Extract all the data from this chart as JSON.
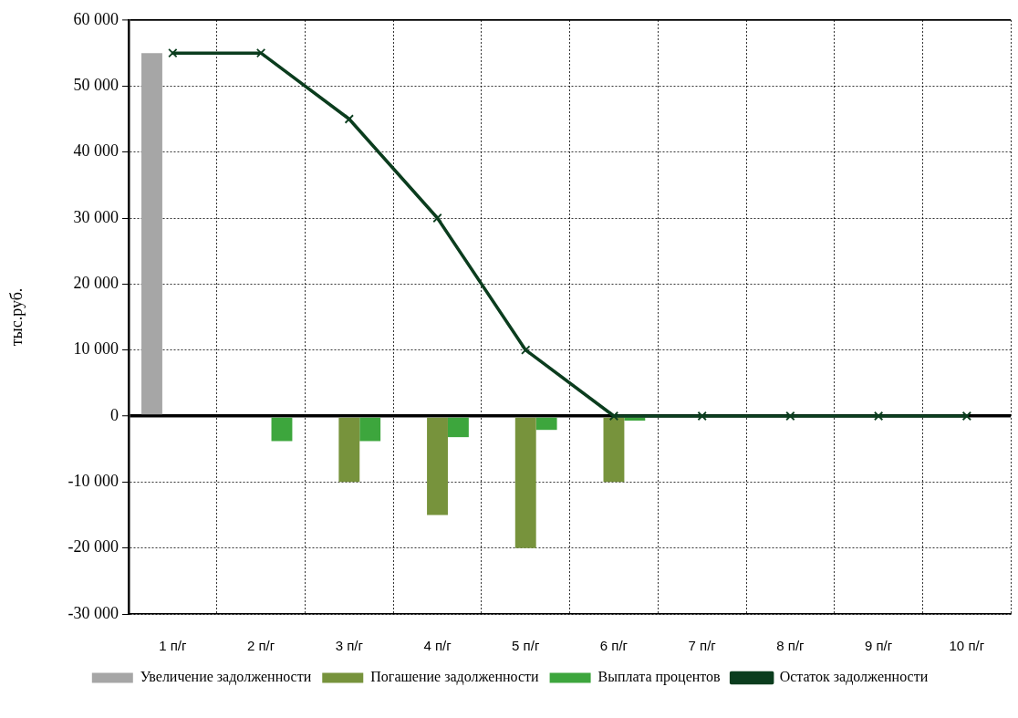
{
  "chart_data": {
    "type": "bar",
    "ylabel": "тыс.руб.",
    "categories": [
      "1 п/г",
      "2 п/г",
      "3 п/г",
      "4 п/г",
      "5 п/г",
      "6 п/г",
      "7 п/г",
      "8 п/г",
      "9 п/г",
      "10 п/г"
    ],
    "series": [
      {
        "name": "Увеличение задолженности",
        "color": "#a6a6a6",
        "values": [
          55000,
          null,
          null,
          null,
          null,
          null,
          null,
          null,
          null,
          null
        ]
      },
      {
        "name": "Погашение задолженности",
        "color": "#77933c",
        "values": [
          null,
          null,
          -10000,
          -15000,
          -20000,
          -10000,
          null,
          null,
          null,
          null
        ]
      },
      {
        "name": "Выплата процентов",
        "color": "#3da63d",
        "values": [
          null,
          -3800,
          -3800,
          -3200,
          -2100,
          -700,
          null,
          null,
          null,
          null
        ]
      },
      {
        "name": "Остаток задолженности",
        "type": "line",
        "color": "#0b3d1e",
        "marker": "cross",
        "values": [
          55000,
          55000,
          45000,
          30000,
          10000,
          0,
          0,
          0,
          0,
          0
        ]
      }
    ],
    "ylim": [
      -30000,
      60000
    ],
    "yticks": [
      {
        "value": -30000,
        "label": "-30 000"
      },
      {
        "value": -20000,
        "label": "-20 000"
      },
      {
        "value": -10000,
        "label": "-10 000"
      },
      0,
      {
        "value": 10000,
        "label": "10 000"
      },
      {
        "value": 20000,
        "label": "20 000"
      },
      {
        "value": 30000,
        "label": "30 000"
      },
      {
        "value": 40000,
        "label": "40 000"
      },
      {
        "value": 50000,
        "label": "50 000"
      },
      {
        "value": 60000,
        "label": "60 000"
      }
    ],
    "grid": true,
    "legend": "bottom"
  }
}
